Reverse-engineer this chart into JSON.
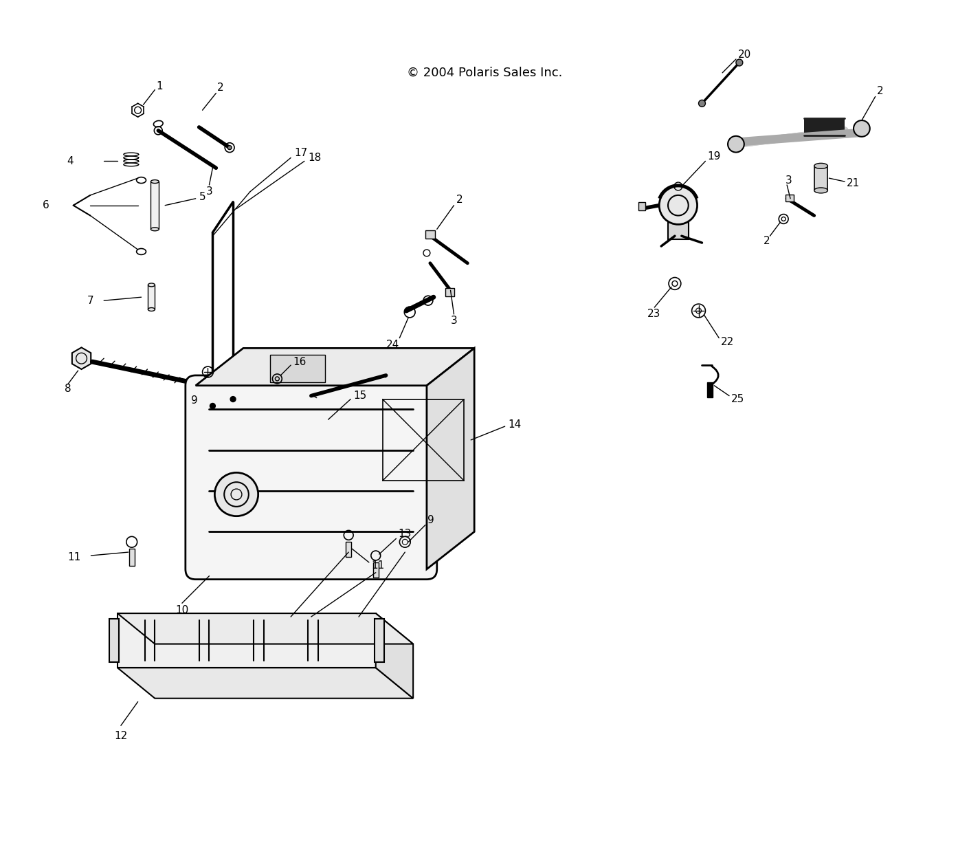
{
  "title": "© 2004 Polaris Sales Inc.",
  "bg_color": "#ffffff",
  "line_color": "#000000",
  "figsize": [
    14.1,
    12.61
  ],
  "dpi": 100
}
